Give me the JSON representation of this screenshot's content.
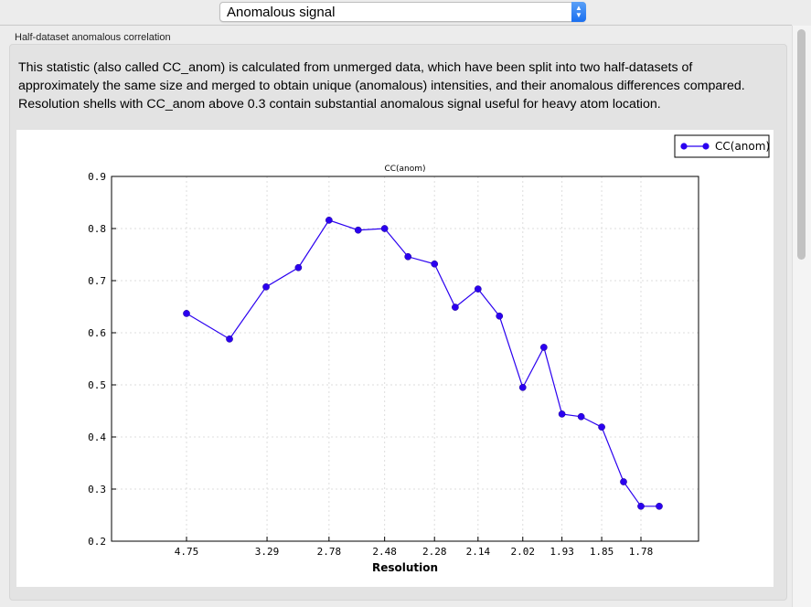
{
  "selector": {
    "value": "Anomalous signal"
  },
  "group": {
    "title": "Half-dataset anomalous correlation",
    "description": "This statistic (also called CC_anom) is calculated from unmerged data, which have been split into two half-datasets of approximately the same size and merged to obtain unique (anomalous) intensities, and their anomalous differences compared.  Resolution shells with CC_anom above 0.3 contain substantial anomalous signal useful for heavy atom location."
  },
  "chart_data": {
    "type": "line",
    "title": "CC(anom)",
    "xlabel": "Resolution",
    "ylabel": "",
    "x_scale": "reciprocal-squared (1/d^2)",
    "ylim": [
      0.2,
      0.9
    ],
    "yticks": [
      "0.2",
      "0.3",
      "0.4",
      "0.5",
      "0.6",
      "0.7",
      "0.8",
      "0.9"
    ],
    "xticks": [
      "4.75",
      "3.29",
      "2.78",
      "2.48",
      "2.28",
      "2.14",
      "2.02",
      "1.93",
      "1.85",
      "1.78"
    ],
    "grid": true,
    "legend": "top-right",
    "color": "#2b00f0",
    "series": [
      {
        "name": "CC(anom)",
        "x": [
          4.75,
          3.78,
          3.3,
          3.0,
          2.78,
          2.61,
          2.48,
          2.38,
          2.28,
          2.21,
          2.14,
          2.08,
          2.02,
          1.97,
          1.93,
          1.89,
          1.85,
          1.81,
          1.78,
          1.75
        ],
        "y": [
          0.637,
          0.588,
          0.688,
          0.725,
          0.816,
          0.797,
          0.8,
          0.746,
          0.732,
          0.649,
          0.684,
          0.632,
          0.495,
          0.572,
          0.444,
          0.439,
          0.419,
          0.314,
          0.267,
          0.267
        ]
      }
    ]
  }
}
